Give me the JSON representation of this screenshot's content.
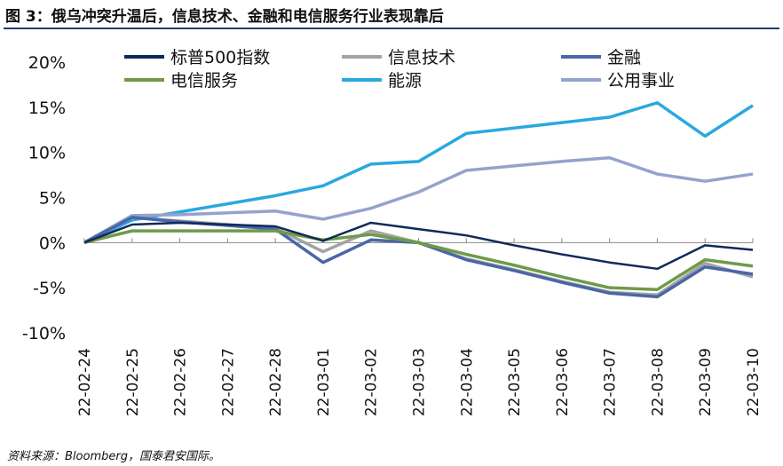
{
  "title": "图 3：俄乌冲突升温后，信息技术、金融和电信服务行业表现靠后",
  "source": "资料来源：Bloomberg，国泰君安国际。",
  "chart_data": {
    "type": "line",
    "title": "图 3：俄乌冲突升温后，信息技术、金融和电信服务行业表现靠后",
    "xlabel": "",
    "ylabel": "",
    "ylim": [
      -10,
      20
    ],
    "yticks": [
      -10,
      -5,
      0,
      5,
      10,
      15,
      20
    ],
    "ytick_labels": [
      "-10%",
      "-5%",
      "0%",
      "5%",
      "10%",
      "15%",
      "20%"
    ],
    "grid": false,
    "legend": "top",
    "x": [
      "22-02-24",
      "22-02-25",
      "22-02-26",
      "22-02-27",
      "22-02-28",
      "22-03-01",
      "22-03-02",
      "22-03-03",
      "22-03-04",
      "22-03-05",
      "22-03-06",
      "22-03-07",
      "22-03-08",
      "22-03-09",
      "22-03-10"
    ],
    "series": [
      {
        "name": "标普500指数",
        "color": "#0f2a5a",
        "values": [
          0,
          2.0,
          2.2,
          2.0,
          1.8,
          0.2,
          2.2,
          1.5,
          0.8,
          -0.3,
          -1.3,
          -2.2,
          -2.9,
          -0.3,
          -0.8
        ]
      },
      {
        "name": "信息技术",
        "color": "#a3a3a3",
        "values": [
          0,
          2.8,
          2.4,
          2.0,
          1.6,
          -1.0,
          1.3,
          0,
          -1.8,
          -3.0,
          -4.3,
          -5.5,
          -5.8,
          -2.3,
          -3.8
        ]
      },
      {
        "name": "金融",
        "color": "#4a66a8",
        "values": [
          0,
          2.8,
          2.3,
          1.9,
          1.5,
          -2.2,
          0.3,
          0,
          -1.9,
          -3.1,
          -4.4,
          -5.6,
          -6.0,
          -2.7,
          -3.5
        ]
      },
      {
        "name": "电信服务",
        "color": "#6e9a4a",
        "values": [
          0,
          1.3,
          1.3,
          1.3,
          1.3,
          0.3,
          0.9,
          0,
          -1.3,
          -2.5,
          -3.8,
          -5.0,
          -5.2,
          -1.9,
          -2.6
        ]
      },
      {
        "name": "能源",
        "color": "#29a8e0",
        "values": [
          0,
          2.5,
          3.4,
          4.3,
          5.2,
          6.3,
          8.7,
          9.0,
          12.1,
          12.7,
          13.3,
          13.9,
          15.5,
          11.8,
          15.2
        ]
      },
      {
        "name": "公用事业",
        "color": "#94a3cc",
        "values": [
          0,
          3.0,
          3.1,
          3.3,
          3.5,
          2.6,
          3.8,
          5.6,
          8.0,
          8.5,
          9.0,
          9.4,
          7.6,
          6.8,
          7.6
        ]
      }
    ]
  }
}
